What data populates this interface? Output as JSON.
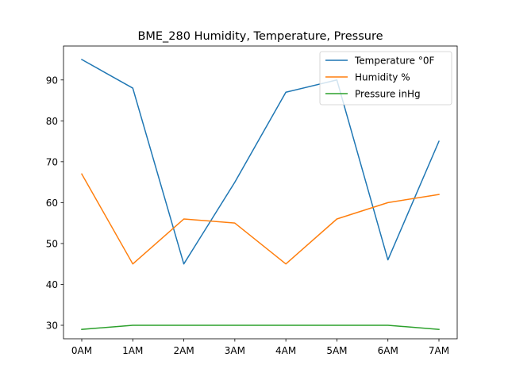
{
  "chart_data": {
    "type": "line",
    "title": "BME_280 Humidity, Temperature, Pressure",
    "xlabel": "",
    "ylabel": "",
    "categories": [
      "0AM",
      "1AM",
      "2AM",
      "3AM",
      "4AM",
      "5AM",
      "6AM",
      "7AM"
    ],
    "ylim": [
      26.7,
      98.3
    ],
    "yticks": [
      30,
      40,
      50,
      60,
      70,
      80,
      90
    ],
    "grid": false,
    "legend_position": "top-right",
    "series": [
      {
        "name": "Temperature °0F",
        "color": "#1f77b4",
        "values": [
          95,
          88,
          45,
          65,
          87,
          90,
          46,
          75
        ]
      },
      {
        "name": "Humidity %",
        "color": "#ff7f0e",
        "values": [
          67,
          45,
          56,
          55,
          45,
          56,
          60,
          62
        ]
      },
      {
        "name": "Pressure inHg",
        "color": "#2ca02c",
        "values": [
          29,
          30,
          30,
          30,
          30,
          30,
          30,
          29
        ]
      }
    ]
  }
}
